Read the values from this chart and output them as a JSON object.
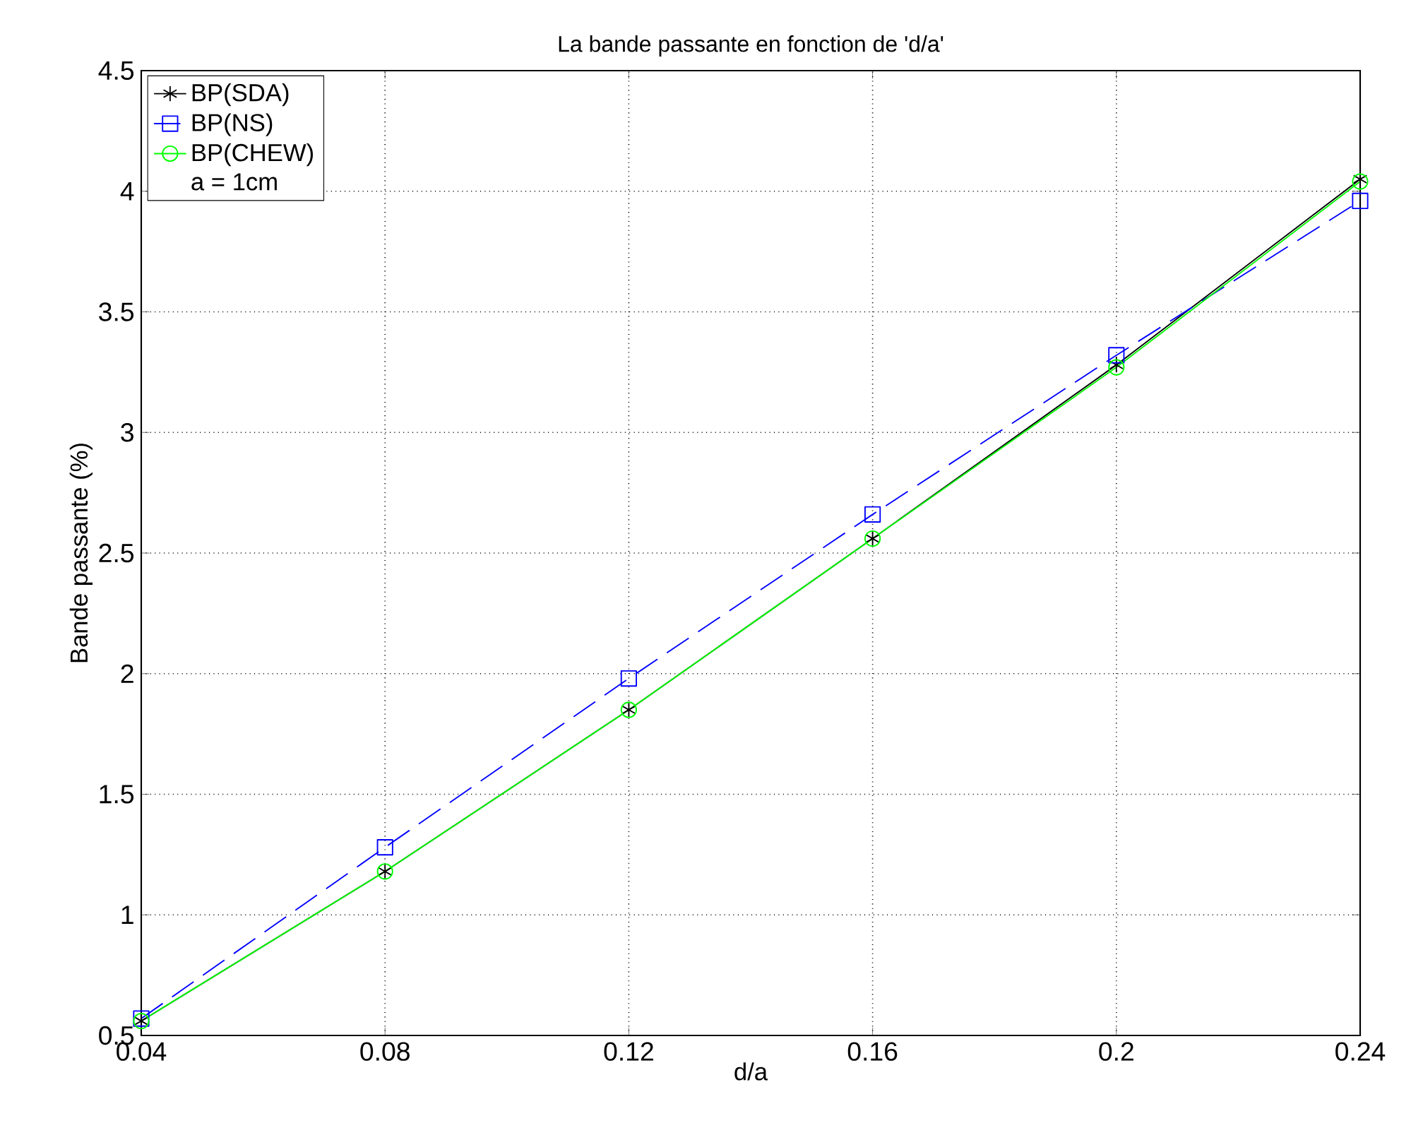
{
  "chart_data": {
    "type": "line",
    "title": "La bande passante en fonction de 'd/a'",
    "xlabel": "d/a",
    "ylabel": "Bande passante (%)",
    "x": [
      0.04,
      0.08,
      0.12,
      0.16,
      0.2,
      0.24
    ],
    "series": [
      {
        "name": "BP(SDA)",
        "color": "#000000",
        "marker": "cross",
        "line_style": "solid",
        "values": [
          0.56,
          1.18,
          1.85,
          2.56,
          3.28,
          4.05
        ]
      },
      {
        "name": "BP(NS)",
        "color": "#0000ff",
        "marker": "square",
        "line_style": "dashed",
        "values": [
          0.57,
          1.28,
          1.98,
          2.66,
          3.32,
          3.96
        ]
      },
      {
        "name": "BP(CHEW)",
        "color": "#00ff00",
        "marker": "circle",
        "line_style": "solid",
        "values": [
          0.56,
          1.18,
          1.85,
          2.56,
          3.27,
          4.04
        ]
      }
    ],
    "annotations": [
      "a = 1cm"
    ],
    "xlim": [
      0.04,
      0.24
    ],
    "xticks": [
      0.04,
      0.08,
      0.12,
      0.16,
      0.2,
      0.24
    ],
    "ylim": [
      0.5,
      4.5
    ],
    "yticks": [
      0.5,
      1,
      1.5,
      2,
      2.5,
      3,
      3.5,
      4,
      4.5
    ],
    "grid": true,
    "legend": "top left"
  }
}
